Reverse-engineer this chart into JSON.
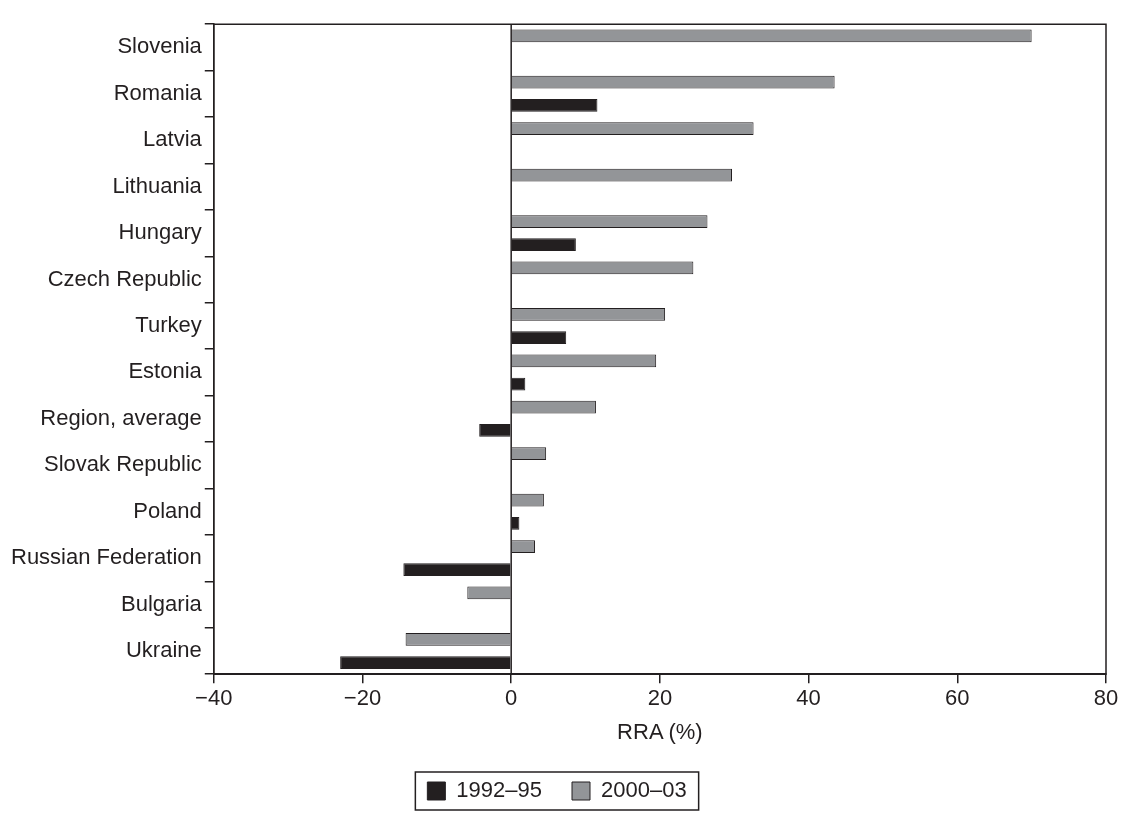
{
  "chart_data": {
    "type": "bar",
    "orientation": "horizontal",
    "xlabel": "RRA (%)",
    "categories": [
      "Slovenia",
      "Romania",
      "Latvia",
      "Lithuania",
      "Hungary",
      "Czech Republic",
      "Turkey",
      "Estonia",
      "Region, average",
      "Slovak Republic",
      "Poland",
      "Russian Federation",
      "Bulgaria",
      "Ukraine"
    ],
    "series": [
      {
        "name": "1992–95",
        "color": "#231f20",
        "values": [
          0,
          11.6,
          0,
          0,
          8.7,
          0,
          7.4,
          1.9,
          -4.3,
          0,
          1.1,
          -14.5,
          0,
          -23.0
        ]
      },
      {
        "name": "2000–03",
        "color": "#939598",
        "values": [
          70.0,
          43.5,
          32.6,
          29.7,
          26.4,
          24.5,
          20.7,
          19.5,
          11.4,
          4.7,
          4.4,
          3.2,
          -5.9,
          -14.2
        ]
      }
    ],
    "xlim": [
      -40,
      80
    ],
    "xticks": [
      {
        "value": -40,
        "label": "−40"
      },
      {
        "value": -20,
        "label": "−20"
      },
      0,
      20,
      40,
      60,
      80
    ],
    "ref_lines": [
      {
        "axis": "x",
        "value": 0
      }
    ],
    "grid": false,
    "legend": "bottom"
  }
}
